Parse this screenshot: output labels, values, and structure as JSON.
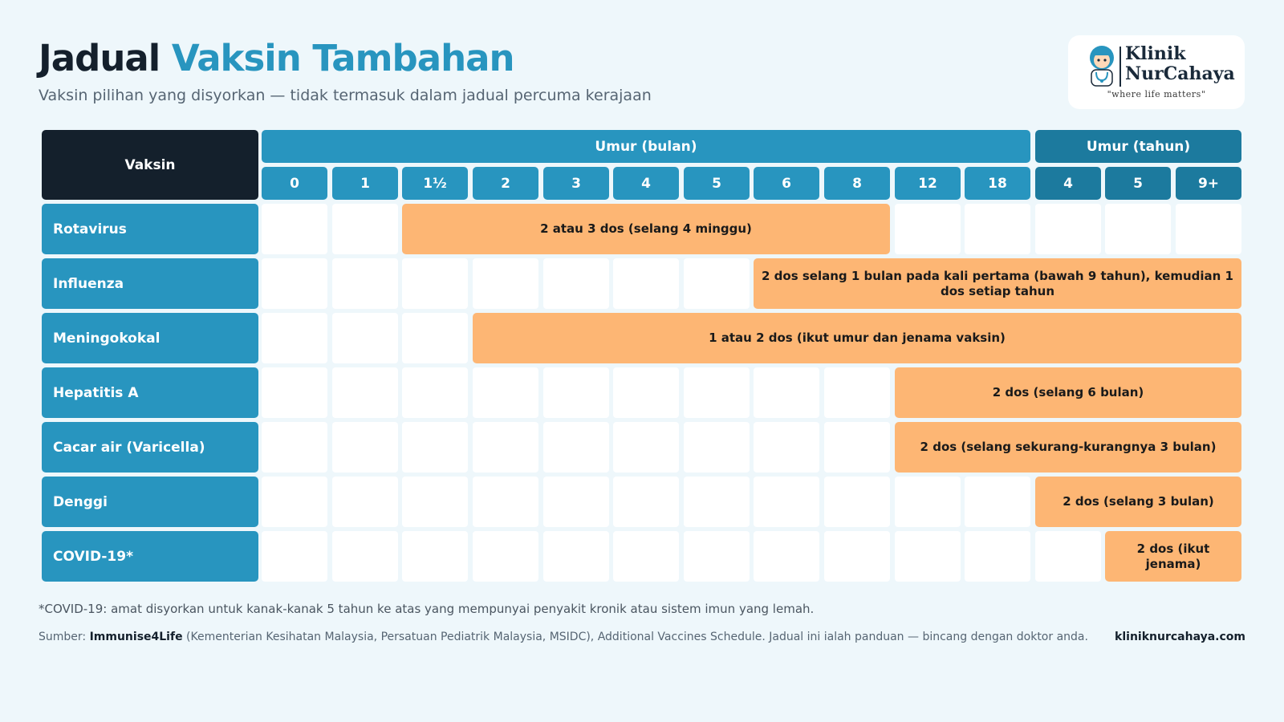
{
  "header": {
    "title_part1": "Jadual",
    "title_part2": "Vaksin Tambahan",
    "subtitle": "Vaksin pilihan yang disyorkan — tidak termasuk dalam jadual percuma kerajaan"
  },
  "logo": {
    "name_line1": "Klinik",
    "name_line2": "NurCahaya",
    "tagline": "\"where life matters\""
  },
  "table": {
    "vaccine_header": "Vaksin",
    "month_group_label": "Umur (bulan)",
    "year_group_label": "Umur (tahun)",
    "month_ages": [
      "0",
      "1",
      "1½",
      "2",
      "3",
      "4",
      "5",
      "6",
      "8",
      "12",
      "18"
    ],
    "year_ages": [
      "4",
      "5",
      "9+"
    ],
    "rows": [
      {
        "name": "Rotavirus",
        "start_col": 2,
        "end_col": 8,
        "text": "2 atau 3 dos (selang 4 minggu)"
      },
      {
        "name": "Influenza",
        "start_col": 7,
        "end_col": 13,
        "text": "2 dos selang 1 bulan pada kali pertama (bawah 9 tahun), kemudian 1 dos setiap tahun"
      },
      {
        "name": "Meningokokal",
        "start_col": 3,
        "end_col": 13,
        "text": "1 atau 2 dos (ikut umur dan jenama vaksin)"
      },
      {
        "name": "Hepatitis A",
        "start_col": 9,
        "end_col": 13,
        "text": "2 dos (selang 6 bulan)"
      },
      {
        "name": "Cacar air (Varicella)",
        "start_col": 9,
        "end_col": 13,
        "text": "2 dos (selang sekurang-kurangnya 3 bulan)"
      },
      {
        "name": "Denggi",
        "start_col": 11,
        "end_col": 13,
        "text": "2 dos (selang 3 bulan)"
      },
      {
        "name": "COVID-19*",
        "start_col": 12,
        "end_col": 13,
        "text": "2 dos (ikut jenama)"
      }
    ]
  },
  "footnote": "*COVID-19: amat disyorkan untuk kanak-kanak 5 tahun ke atas yang mempunyai penyakit kronik atau sistem imun yang lemah.",
  "source": {
    "label": "Sumber:",
    "bold": "Immunise4Life",
    "text": "(Kementerian Kesihatan Malaysia, Persatuan Pediatrik Malaysia, MSIDC), Additional Vaccines Schedule. Jadual ini ialah panduan — bincang dengan doktor anda."
  },
  "website": "kliniknurcahaya.com",
  "colors": {
    "navy": "#14202c",
    "blue": "#2895bf",
    "dark_blue": "#1c7a9e",
    "orange": "#fdb674",
    "background": "#eef7fb"
  }
}
